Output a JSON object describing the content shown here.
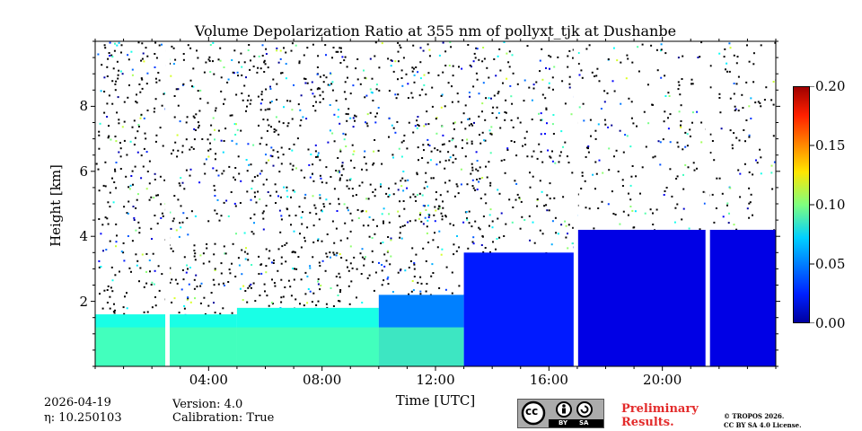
{
  "chart_data": {
    "type": "heatmap",
    "title": "Volume Depolarization Ratio at 355 nm of pollyxt_tjk at Dushanbe",
    "xlabel": "Time [UTC]",
    "ylabel": "Height [km]",
    "xlim_hours": [
      0,
      24
    ],
    "ylim_km": [
      0,
      10
    ],
    "xticks": [
      {
        "label": "04:00",
        "hour": 4
      },
      {
        "label": "08:00",
        "hour": 8
      },
      {
        "label": "12:00",
        "hour": 12
      },
      {
        "label": "16:00",
        "hour": 16
      },
      {
        "label": "20:00",
        "hour": 20
      }
    ],
    "yticks": [
      {
        "label": "2",
        "km": 2
      },
      {
        "label": "4",
        "km": 4
      },
      {
        "label": "6",
        "km": 6
      },
      {
        "label": "8",
        "km": 8
      }
    ],
    "colorbar": {
      "vmin": 0.0,
      "vmax": 0.2,
      "colormap": "jet",
      "ticks": [
        {
          "label": "0.00",
          "value": 0.0
        },
        {
          "label": "0.05",
          "value": 0.05
        },
        {
          "label": "0.10",
          "value": 0.1
        },
        {
          "label": "0.15",
          "value": 0.15
        },
        {
          "label": "0.20",
          "value": 0.2
        }
      ]
    },
    "data_gaps_hours": [
      2.55,
      16.95,
      21.6
    ],
    "approx_layers": [
      {
        "from_hour": 0,
        "to_hour": 5,
        "top_km": 1.6,
        "value": 0.08
      },
      {
        "from_hour": 5,
        "to_hour": 10,
        "top_km": 1.8,
        "value": 0.08
      },
      {
        "from_hour": 10,
        "to_hour": 13,
        "top_km": 2.2,
        "value": 0.05
      },
      {
        "from_hour": 13,
        "to_hour": 17,
        "top_km": 3.5,
        "value": 0.03
      },
      {
        "from_hour": 17,
        "to_hour": 24,
        "top_km": 4.2,
        "value": 0.02
      }
    ]
  },
  "footer": {
    "date": "2026-04-19",
    "eta": "η: 10.250103",
    "version": "Version: 4.0",
    "calibration": "Calibration: True",
    "license_badge": {
      "cc": "cc",
      "by": "BY",
      "sa": "SA"
    },
    "preliminary_line1": "Preliminary",
    "preliminary_line2": "Results.",
    "copyright_line1": "© TROPOS 2026.",
    "copyright_line2": "CC BY SA 4.0 License."
  }
}
